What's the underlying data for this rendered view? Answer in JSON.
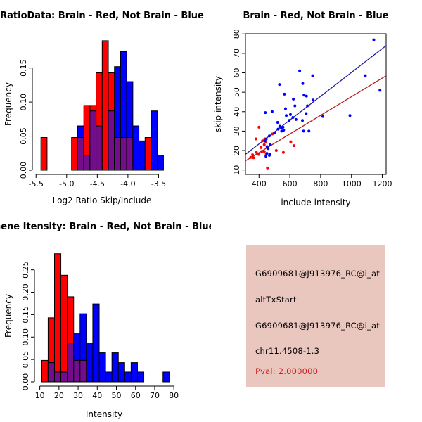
{
  "figure": {
    "background": "#ffffff"
  },
  "chart_data": [
    {
      "id": "ratio-histogram",
      "type": "histogram",
      "title": "RatioData: Brain - Red, Not Brain - Blue",
      "xlabel": "Log2 Ratio Skip/Include",
      "ylabel": "Frequency",
      "xlim": [
        -5.56,
        -3.31
      ],
      "ylim": [
        0,
        0.193
      ],
      "xticks": [
        -5.5,
        -5.0,
        -4.5,
        -4.0,
        -3.5
      ],
      "xtick_labels": [
        "-5.5",
        "-5.0",
        "-4.5",
        "-4.0",
        "-3.5"
      ],
      "yticks": [
        0,
        0.05,
        0.1,
        0.15
      ],
      "ytick_labels": [
        "0.00",
        "0.05",
        "0.10",
        "0.15"
      ],
      "bin_start": -5.42,
      "bin_width": 0.1,
      "series": [
        {
          "name": "Brain",
          "color": "#ff0000",
          "values": [
            0.048,
            0,
            0,
            0,
            0,
            0.048,
            0.048,
            0.095,
            0.095,
            0.143,
            0.19,
            0.143,
            0.048,
            0.048,
            0.048,
            0,
            0,
            0.048,
            0,
            0,
            0
          ]
        },
        {
          "name": "Not Brain",
          "color": "#0000ff",
          "values": [
            0,
            0,
            0,
            0,
            0,
            0,
            0.065,
            0.022,
            0.087,
            0.065,
            0,
            0.087,
            0.152,
            0.174,
            0.13,
            0.065,
            0.043,
            0,
            0.087,
            0.022,
            0
          ]
        }
      ],
      "overlap_color": "#730d8c",
      "grid": false
    },
    {
      "id": "scatter",
      "type": "scatter",
      "title": "Brain - Red, Not Brain - Blue",
      "xlabel": "include intensity",
      "ylabel": "skip intensity",
      "xlim": [
        312,
        1225
      ],
      "ylim": [
        7.7,
        80.1
      ],
      "xticks": [
        400,
        600,
        800,
        1000,
        1200
      ],
      "xtick_labels": [
        "400",
        "600",
        "800",
        "1000",
        "1200"
      ],
      "yticks": [
        10,
        20,
        30,
        40,
        50,
        60,
        70,
        80
      ],
      "ytick_labels": [
        "10",
        "20",
        "30",
        "40",
        "50",
        "60",
        "70",
        "80"
      ],
      "series": [
        {
          "name": "Brain",
          "color": "#ff0000",
          "points": [
            [
              400,
              32
            ],
            [
              486,
              28.5
            ],
            [
              380,
              26
            ],
            [
              437,
              26
            ],
            [
              423,
              25
            ],
            [
              445,
              24.5
            ],
            [
              434,
              23
            ],
            [
              413,
              21.5
            ],
            [
              606,
              24.5
            ],
            [
              626,
              22.5
            ],
            [
              512,
              20
            ],
            [
              558,
              19
            ],
            [
              383,
              19
            ],
            [
              434,
              19.5
            ],
            [
              447,
              18
            ],
            [
              346,
              16.5
            ],
            [
              365,
              16.3
            ],
            [
              358,
              17.8
            ],
            [
              397,
              18
            ],
            [
              418,
              19.5
            ],
            [
              455,
              11
            ]
          ]
        },
        {
          "name": "Not Brain",
          "color": "#0000ff",
          "points": [
            [
              1145,
              77
            ],
            [
              1090,
              58.5
            ],
            [
              1185,
              51
            ],
            [
              990,
              38
            ],
            [
              814,
              37.5
            ],
            [
              664,
              61
            ],
            [
              748,
              58.5
            ],
            [
              533,
              54
            ],
            [
              684,
              54.5
            ],
            [
              565,
              49
            ],
            [
              692,
              48.5
            ],
            [
              708,
              48
            ],
            [
              751,
              46
            ],
            [
              623,
              46.5
            ],
            [
              633,
              43
            ],
            [
              714,
              43
            ],
            [
              706,
              39
            ],
            [
              572,
              41.5
            ],
            [
              485,
              40
            ],
            [
              441,
              39.5
            ],
            [
              521,
              34.5
            ],
            [
              577,
              38
            ],
            [
              604,
              38.5
            ],
            [
              620,
              37
            ],
            [
              596,
              35.5
            ],
            [
              640,
              36
            ],
            [
              682,
              35.5
            ],
            [
              547,
              30
            ],
            [
              689,
              30
            ],
            [
              724,
              30
            ],
            [
              535,
              32.5
            ],
            [
              545,
              31.5
            ],
            [
              556,
              32
            ],
            [
              560,
              30.5
            ],
            [
              524,
              31
            ],
            [
              500,
              29
            ],
            [
              467,
              27.5
            ],
            [
              447,
              26
            ],
            [
              452,
              22
            ],
            [
              473,
              23
            ],
            [
              459,
              21
            ],
            [
              451,
              18.5
            ],
            [
              467,
              17.5
            ],
            [
              445,
              17
            ],
            [
              470,
              18
            ],
            [
              438,
              25
            ]
          ]
        }
      ],
      "lines": [
        {
          "name": "brain-fit-line",
          "color": "#b22222",
          "x1": 312,
          "y1": 14.7,
          "x2": 1225,
          "y2": 58.5
        },
        {
          "name": "notbrain-fit-line",
          "color": "#1f1f9c",
          "x1": 312,
          "y1": 18.0,
          "x2": 1225,
          "y2": 74.0
        }
      ],
      "grid": false
    },
    {
      "id": "gene-intensity-histogram",
      "type": "histogram",
      "title": "Gene Itensity: Brain - Red, Not Brain - Blue",
      "xlabel": "Intensity",
      "ylabel": "Frequency",
      "xlim": [
        7.2,
        80.3
      ],
      "ylim": [
        0,
        0.295
      ],
      "xticks": [
        10,
        20,
        30,
        40,
        50,
        60,
        70,
        80
      ],
      "xtick_labels": [
        "10",
        "20",
        "30",
        "40",
        "50",
        "60",
        "70",
        "80"
      ],
      "yticks": [
        0,
        0.05,
        0.1,
        0.15,
        0.2,
        0.25
      ],
      "ytick_labels": [
        "0.00",
        "0.05",
        "0.10",
        "0.15",
        "0.20",
        "0.25"
      ],
      "bin_start": 11,
      "bin_width": 3.3333,
      "series": [
        {
          "name": "Brain",
          "color": "#ff0000",
          "values": [
            0.048,
            0.143,
            0.286,
            0.238,
            0.19,
            0.048,
            0.048,
            0,
            0,
            0,
            0,
            0,
            0,
            0,
            0,
            0,
            0,
            0,
            0,
            0
          ]
        },
        {
          "name": "Not Brain",
          "color": "#0000ff",
          "values": [
            0,
            0.043,
            0.022,
            0.022,
            0.087,
            0.109,
            0.152,
            0.087,
            0.174,
            0.065,
            0.022,
            0.065,
            0.043,
            0.022,
            0.043,
            0.022,
            0,
            0,
            0,
            0.022
          ]
        }
      ],
      "overlap_color": "#730d8c",
      "grid": false
    }
  ],
  "info_panel": {
    "bg_color": "#e9c6be",
    "lines": [
      {
        "text": "G6909681@J913976_RC@i_at",
        "color": "#000000"
      },
      {
        "text": "altTxStart",
        "color": "#000000"
      },
      {
        "text": "G6909681@J913976_RC@i_at",
        "color": "#000000"
      },
      {
        "text": "chr11.4508-1.3",
        "color": "#000000"
      },
      {
        "text": "Pval: 2.000000",
        "color": "#cc2222"
      }
    ]
  }
}
